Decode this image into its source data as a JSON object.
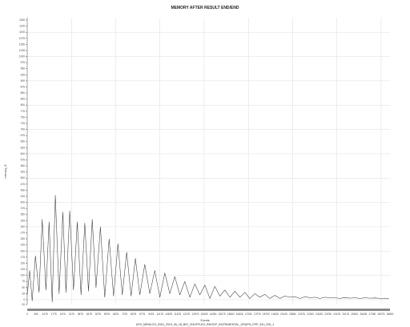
{
  "chart_data": {
    "type": "line",
    "title": "MEMORY AFTER RESULT END/END",
    "subtitle": "UFD_MEMLOG_ENG_2019_06_18_BIG_SHUFFLED_RNODP_INCREMENTAL_GRAPH_FRP_610_EW_1",
    "xlabel": "Events",
    "ylabel": "memory_ft",
    "grid": true,
    "legend": "none",
    "xlim": [
      0,
      29000
    ],
    "ylim": [
      -20,
      1160
    ],
    "x_ticks": [
      "0",
      "450",
      "1075",
      "1775",
      "2475",
      "3175",
      "3875",
      "4575",
      "5275",
      "5975",
      "6675",
      "7375",
      "8075",
      "8775",
      "9475",
      "10175",
      "10875",
      "11575",
      "12275",
      "12975",
      "13625",
      "14350",
      "15075",
      "15800",
      "16525",
      "17250",
      "17975",
      "18700",
      "19425",
      "20125",
      "20850",
      "21575",
      "22300",
      "23025",
      "23750",
      "24475",
      "25175",
      "25900",
      "26625",
      "27350",
      "28075",
      "28800"
    ],
    "y_ticks": [
      -20,
      0,
      25,
      50,
      75,
      100,
      125,
      150,
      175,
      200,
      225,
      250,
      275,
      300,
      325,
      350,
      375,
      400,
      425,
      450,
      475,
      500,
      525,
      550,
      575,
      600,
      625,
      650,
      675,
      700,
      725,
      750,
      775,
      800,
      825,
      850,
      875,
      900,
      925,
      950,
      975,
      1000,
      1025,
      1050,
      1075,
      1100,
      1125,
      1150
    ],
    "series": [
      {
        "x": [
          0,
          200,
          400,
          650,
          950,
          1200,
          1500,
          1750,
          2000,
          2250,
          2550,
          2850,
          3100,
          3400,
          3700,
          4000,
          4300,
          4600,
          4900,
          5200,
          5500,
          5850,
          6200,
          6550,
          6900,
          7250,
          7600,
          7950,
          8300,
          8650,
          9000,
          9400,
          9800,
          10200,
          10600,
          11000,
          11400,
          11800,
          12200,
          12600,
          13000,
          13400,
          13800,
          14200,
          14600,
          15000,
          15400,
          15800,
          16200,
          16600,
          17000,
          17400,
          17800,
          18200,
          18600,
          19000,
          19400,
          19800,
          20200,
          20600,
          21000,
          21400,
          21800,
          22200,
          22600,
          23000,
          23400,
          23800,
          24200,
          24600,
          25000,
          25400,
          25800,
          26200,
          26600,
          27000,
          27400,
          27800,
          28200,
          28600,
          28900
        ],
        "y": [
          20,
          120,
          -5,
          180,
          30,
          330,
          40,
          320,
          -10,
          430,
          25,
          360,
          30,
          365,
          40,
          320,
          20,
          315,
          35,
          330,
          50,
          300,
          10,
          250,
          15,
          230,
          20,
          195,
          15,
          170,
          20,
          145,
          25,
          120,
          10,
          110,
          25,
          95,
          20,
          75,
          10,
          65,
          20,
          60,
          5,
          55,
          15,
          40,
          10,
          35,
          10,
          30,
          5,
          25,
          10,
          22,
          5,
          18,
          5,
          15,
          10,
          12,
          5,
          12,
          8,
          10,
          5,
          10,
          8,
          8,
          5,
          9,
          6,
          8,
          5,
          8,
          6,
          7,
          5,
          6,
          4
        ]
      }
    ],
    "colors": {
      "line": "#3a3a3a",
      "axis_bar": "#8a8a8a"
    }
  }
}
